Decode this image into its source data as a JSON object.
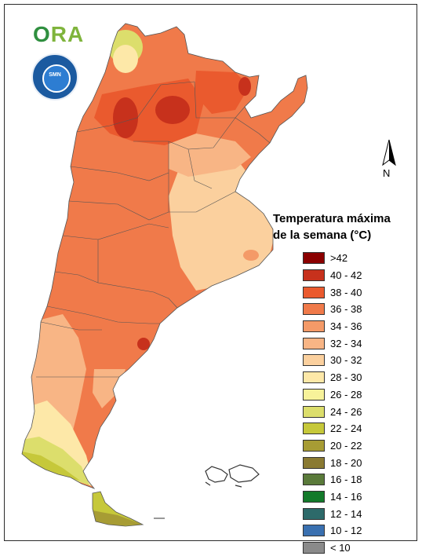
{
  "logo": {
    "text_o": "O",
    "text_ra": "RA"
  },
  "seal": {
    "text": "SMN"
  },
  "compass": {
    "label": "N"
  },
  "legend": {
    "title_line1": "Temperatura máxima",
    "title_line2": "de la semana (°C)",
    "items": [
      {
        "label": ">42",
        "color": "#8b0000"
      },
      {
        "label": "40 - 42",
        "color": "#c7311c"
      },
      {
        "label": "38 - 40",
        "color": "#ea5a2e"
      },
      {
        "label": "36 - 38",
        "color": "#f07a4a"
      },
      {
        "label": "34 - 36",
        "color": "#f49a68"
      },
      {
        "label": "32 - 34",
        "color": "#f8b585"
      },
      {
        "label": "30 - 32",
        "color": "#fbd09e"
      },
      {
        "label": "28 - 30",
        "color": "#fde8a8"
      },
      {
        "label": "26 - 28",
        "color": "#f7f29a"
      },
      {
        "label": "24 - 26",
        "color": "#dcde6c"
      },
      {
        "label": "22 - 24",
        "color": "#c6c83a"
      },
      {
        "label": "20 - 22",
        "color": "#a79c34"
      },
      {
        "label": "18 - 20",
        "color": "#8a7a32"
      },
      {
        "label": "16 - 18",
        "color": "#5a7a3a"
      },
      {
        "label": "14 - 16",
        "color": "#137a2a"
      },
      {
        "label": "12 - 14",
        "color": "#2d6a6a"
      },
      {
        "label": "10 - 12",
        "color": "#3a70b0"
      },
      {
        "label": "< 10",
        "color": "#8a8a8a"
      }
    ]
  }
}
